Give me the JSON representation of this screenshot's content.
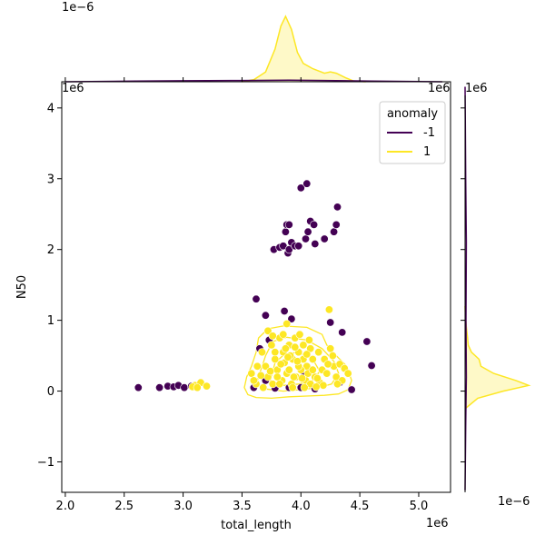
{
  "chart_data": {
    "type": "scatter",
    "joint_plot": true,
    "xlabel": "total_length",
    "ylabel": "N50",
    "x_scale_label": "1e6",
    "y_scale_label": "1e6",
    "top_marginal_scale_label": "1e−6",
    "right_marginal_scale_label": "1e−6",
    "xlim": [
      1.97,
      5.27
    ],
    "ylim": [
      -1.43,
      4.37
    ],
    "x_ticks": [
      2.0,
      2.5,
      3.0,
      3.5,
      4.0,
      4.5,
      5.0
    ],
    "x_tick_labels": [
      "2.0",
      "2.5",
      "3.0",
      "3.5",
      "4.0",
      "4.5",
      "5.0"
    ],
    "y_ticks": [
      -1,
      0,
      1,
      2,
      3,
      4
    ],
    "y_tick_labels": [
      "−1",
      "0",
      "1",
      "2",
      "3",
      "4"
    ],
    "legend": {
      "title": "anomaly",
      "placement": "top-right",
      "entries": [
        {
          "label": "-1",
          "color": "#440154"
        },
        {
          "label": "1",
          "color": "#fde725"
        }
      ]
    },
    "series": [
      {
        "key": "anomaly_neg",
        "color": "#440154",
        "points": [
          [
            2.62,
            0.05
          ],
          [
            2.8,
            0.05
          ],
          [
            2.87,
            0.07
          ],
          [
            2.92,
            0.06
          ],
          [
            2.96,
            0.08
          ],
          [
            3.01,
            0.05
          ],
          [
            3.07,
            0.07
          ],
          [
            3.62,
            1.3
          ],
          [
            3.65,
            0.6
          ],
          [
            3.7,
            1.07
          ],
          [
            3.73,
            0.72
          ],
          [
            3.77,
            2.0
          ],
          [
            3.82,
            2.03
          ],
          [
            3.85,
            2.05
          ],
          [
            3.87,
            2.25
          ],
          [
            3.88,
            2.35
          ],
          [
            3.89,
            1.95
          ],
          [
            3.9,
            2.35
          ],
          [
            3.9,
            2.0
          ],
          [
            3.92,
            2.1
          ],
          [
            3.95,
            2.05
          ],
          [
            3.98,
            2.05
          ],
          [
            4.0,
            2.87
          ],
          [
            4.04,
            2.15
          ],
          [
            4.06,
            2.25
          ],
          [
            4.05,
            2.93
          ],
          [
            4.08,
            2.4
          ],
          [
            4.11,
            2.35
          ],
          [
            4.12,
            2.08
          ],
          [
            4.2,
            2.15
          ],
          [
            4.28,
            2.25
          ],
          [
            4.3,
            2.35
          ],
          [
            4.31,
            2.6
          ],
          [
            3.86,
            1.13
          ],
          [
            3.92,
            1.02
          ],
          [
            4.25,
            0.97
          ],
          [
            4.35,
            0.83
          ],
          [
            4.56,
            0.7
          ],
          [
            4.6,
            0.36
          ],
          [
            4.43,
            0.02
          ],
          [
            4.33,
            0.12
          ],
          [
            4.12,
            0.03
          ],
          [
            4.03,
            0.23
          ],
          [
            3.7,
            0.15
          ],
          [
            3.6,
            0.05
          ],
          [
            3.78,
            0.04
          ],
          [
            3.9,
            0.05
          ],
          [
            4.0,
            0.05
          ]
        ]
      },
      {
        "key": "anomaly_pos",
        "color": "#fde725",
        "points": [
          [
            3.1,
            0.08
          ],
          [
            3.15,
            0.12
          ],
          [
            3.2,
            0.07
          ],
          [
            3.08,
            0.06
          ],
          [
            3.12,
            0.05
          ],
          [
            3.58,
            0.25
          ],
          [
            3.63,
            0.35
          ],
          [
            3.67,
            0.55
          ],
          [
            3.72,
            0.85
          ],
          [
            3.75,
            0.65
          ],
          [
            3.78,
            0.45
          ],
          [
            3.82,
            0.75
          ],
          [
            3.85,
            0.55
          ],
          [
            3.88,
            0.95
          ],
          [
            3.9,
            0.65
          ],
          [
            3.93,
            0.45
          ],
          [
            3.95,
            0.75
          ],
          [
            3.98,
            0.55
          ],
          [
            4.02,
            0.65
          ],
          [
            4.05,
            0.35
          ],
          [
            4.08,
            0.6
          ],
          [
            4.1,
            0.45
          ],
          [
            4.15,
            0.55
          ],
          [
            4.18,
            0.3
          ],
          [
            4.2,
            0.45
          ],
          [
            4.22,
            0.25
          ],
          [
            4.24,
            1.15
          ],
          [
            4.25,
            0.6
          ],
          [
            4.28,
            0.35
          ],
          [
            4.3,
            0.2
          ],
          [
            4.33,
            0.38
          ],
          [
            4.35,
            0.15
          ],
          [
            4.37,
            0.32
          ],
          [
            4.4,
            0.25
          ],
          [
            3.62,
            0.1
          ],
          [
            3.68,
            0.05
          ],
          [
            3.72,
            0.2
          ],
          [
            3.76,
            0.1
          ],
          [
            3.8,
            0.3
          ],
          [
            3.84,
            0.15
          ],
          [
            3.88,
            0.25
          ],
          [
            3.92,
            0.1
          ],
          [
            3.96,
            0.2
          ],
          [
            4.0,
            0.3
          ],
          [
            4.04,
            0.15
          ],
          [
            4.08,
            0.1
          ],
          [
            4.12,
            0.2
          ],
          [
            4.16,
            0.12
          ],
          [
            3.7,
            0.35
          ],
          [
            3.8,
            0.2
          ],
          [
            3.86,
            0.4
          ],
          [
            3.9,
            0.3
          ],
          [
            3.94,
            0.2
          ],
          [
            3.98,
            0.35
          ],
          [
            4.02,
            0.45
          ],
          [
            4.06,
            0.25
          ],
          [
            4.1,
            0.3
          ],
          [
            4.14,
            0.18
          ],
          [
            3.78,
            0.55
          ],
          [
            3.83,
            0.38
          ],
          [
            3.87,
            0.6
          ],
          [
            3.91,
            0.5
          ],
          [
            3.97,
            0.42
          ],
          [
            4.01,
            0.18
          ],
          [
            3.74,
            0.28
          ],
          [
            3.66,
            0.22
          ],
          [
            3.6,
            0.15
          ],
          [
            4.19,
            0.08
          ],
          [
            4.23,
            0.38
          ],
          [
            4.27,
            0.5
          ],
          [
            4.31,
            0.1
          ],
          [
            3.85,
            0.8
          ],
          [
            3.95,
            0.62
          ],
          [
            4.05,
            0.52
          ],
          [
            3.82,
            0.1
          ],
          [
            3.93,
            0.05
          ],
          [
            4.03,
            0.05
          ],
          [
            4.13,
            0.06
          ],
          [
            3.99,
            0.8
          ],
          [
            4.07,
            0.72
          ],
          [
            3.76,
            0.78
          ],
          [
            3.89,
            0.48
          ]
        ]
      }
    ],
    "density_contour": {
      "color": "#fde725",
      "contours": [
        [
          [
            3.52,
            0.05
          ],
          [
            3.55,
            -0.05
          ],
          [
            3.62,
            -0.09
          ],
          [
            3.75,
            -0.1
          ],
          [
            3.9,
            -0.08
          ],
          [
            4.05,
            -0.07
          ],
          [
            4.2,
            -0.06
          ],
          [
            4.32,
            -0.04
          ],
          [
            4.4,
            0.02
          ],
          [
            4.43,
            0.15
          ],
          [
            4.39,
            0.35
          ],
          [
            4.3,
            0.5
          ],
          [
            4.22,
            0.65
          ],
          [
            4.18,
            0.8
          ],
          [
            4.05,
            0.9
          ],
          [
            3.85,
            0.92
          ],
          [
            3.72,
            0.88
          ],
          [
            3.64,
            0.75
          ],
          [
            3.62,
            0.55
          ],
          [
            3.58,
            0.35
          ],
          [
            3.54,
            0.2
          ],
          [
            3.52,
            0.05
          ]
        ],
        [
          [
            3.62,
            0.1
          ],
          [
            3.7,
            0.03
          ],
          [
            3.85,
            0.0
          ],
          [
            4.0,
            0.02
          ],
          [
            4.15,
            0.05
          ],
          [
            4.26,
            0.1
          ],
          [
            4.32,
            0.25
          ],
          [
            4.28,
            0.42
          ],
          [
            4.18,
            0.6
          ],
          [
            4.05,
            0.72
          ],
          [
            3.88,
            0.76
          ],
          [
            3.76,
            0.7
          ],
          [
            3.7,
            0.5
          ],
          [
            3.66,
            0.3
          ],
          [
            3.62,
            0.1
          ]
        ],
        [
          [
            3.74,
            0.15
          ],
          [
            3.85,
            0.08
          ],
          [
            3.98,
            0.1
          ],
          [
            4.1,
            0.15
          ],
          [
            4.16,
            0.28
          ],
          [
            4.1,
            0.45
          ],
          [
            3.98,
            0.55
          ],
          [
            3.86,
            0.52
          ],
          [
            3.78,
            0.4
          ],
          [
            3.74,
            0.15
          ]
        ]
      ]
    },
    "x_marginal": {
      "series": [
        {
          "key": "anomaly_pos",
          "color": "#fde725",
          "fill": true,
          "points": [
            [
              3.5,
              0.0
            ],
            [
              3.6,
              0.03
            ],
            [
              3.7,
              0.15
            ],
            [
              3.78,
              0.5
            ],
            [
              3.83,
              0.85
            ],
            [
              3.87,
              1.0
            ],
            [
              3.92,
              0.8
            ],
            [
              3.97,
              0.45
            ],
            [
              4.02,
              0.28
            ],
            [
              4.1,
              0.2
            ],
            [
              4.2,
              0.13
            ],
            [
              4.25,
              0.15
            ],
            [
              4.3,
              0.13
            ],
            [
              4.38,
              0.06
            ],
            [
              4.45,
              0.01
            ],
            [
              4.55,
              0.0
            ]
          ]
        },
        {
          "key": "anomaly_neg",
          "color": "#440154",
          "fill": false,
          "points": [
            [
              2.0,
              0.0
            ],
            [
              2.6,
              0.01
            ],
            [
              3.0,
              0.015
            ],
            [
              3.5,
              0.02
            ],
            [
              3.9,
              0.025
            ],
            [
              4.2,
              0.02
            ],
            [
              4.6,
              0.01
            ],
            [
              5.2,
              0.0
            ]
          ]
        }
      ]
    },
    "y_marginal": {
      "series": [
        {
          "key": "anomaly_pos",
          "color": "#fde725",
          "fill": true,
          "points": [
            [
              -0.25,
              0.0
            ],
            [
              -0.1,
              0.2
            ],
            [
              0.0,
              0.6
            ],
            [
              0.08,
              1.0
            ],
            [
              0.15,
              0.8
            ],
            [
              0.25,
              0.45
            ],
            [
              0.35,
              0.25
            ],
            [
              0.45,
              0.22
            ],
            [
              0.55,
              0.1
            ],
            [
              0.65,
              0.05
            ],
            [
              0.75,
              0.04
            ],
            [
              0.9,
              0.02
            ],
            [
              1.05,
              0.005
            ],
            [
              1.2,
              0.0
            ]
          ]
        },
        {
          "key": "anomaly_neg",
          "color": "#440154",
          "fill": false,
          "points": [
            [
              -1.4,
              0.0
            ],
            [
              -0.5,
              0.01
            ],
            [
              0.2,
              0.02
            ],
            [
              1.0,
              0.015
            ],
            [
              2.1,
              0.02
            ],
            [
              3.0,
              0.01
            ],
            [
              4.3,
              0.0
            ]
          ]
        }
      ]
    }
  }
}
